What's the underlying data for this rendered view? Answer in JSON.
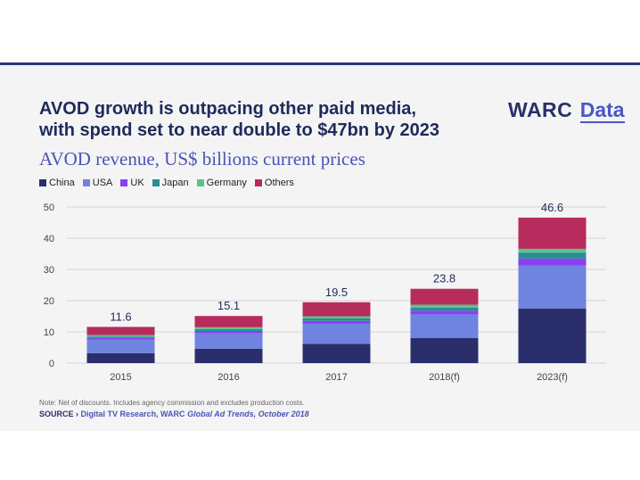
{
  "title_line1": "AVOD growth is outpacing other paid media,",
  "title_line2": "with spend set to near double to $47bn by 2023",
  "brand": {
    "main": "WARC",
    "sub": "Data"
  },
  "colors": {
    "rule": "#2e3383",
    "China": "#2a2f6b",
    "USA": "#6f83e0",
    "UK": "#8a3ff0",
    "Japan": "#2a8d95",
    "Germany": "#59c48a",
    "Others": "#b72c5d"
  },
  "footer": {
    "note": "Note: Net of discounts. Includes agency commission and excludes production costs.",
    "source_label": "SOURCE ›",
    "source_text": "Digital TV Research, WARC",
    "source_pub": "Global Ad Trends, October 2018"
  },
  "chart_data": {
    "type": "bar",
    "stacked": true,
    "title": "AVOD revenue, US$ billions current prices",
    "xlabel": "",
    "ylabel": "",
    "ylim": [
      0,
      50
    ],
    "yticks": [
      0,
      10,
      20,
      30,
      40,
      50
    ],
    "grid": true,
    "legend_position": "top-left",
    "categories": [
      "2015",
      "2016",
      "2017",
      "2018(f)",
      "2023(f)"
    ],
    "totals": [
      "11.6",
      "15.1",
      "19.5",
      "23.8",
      "46.6"
    ],
    "series": [
      {
        "name": "China",
        "values": [
          3.2,
          4.6,
          6.2,
          8.0,
          17.5
        ]
      },
      {
        "name": "USA",
        "values": [
          4.3,
          5.0,
          6.4,
          7.6,
          13.7
        ]
      },
      {
        "name": "UK",
        "values": [
          0.6,
          0.7,
          0.9,
          1.2,
          2.3
        ]
      },
      {
        "name": "Japan",
        "values": [
          0.4,
          0.6,
          0.8,
          1.0,
          1.9
        ]
      },
      {
        "name": "Germany",
        "values": [
          0.5,
          0.6,
          0.7,
          0.9,
          1.2
        ]
      },
      {
        "name": "Others",
        "values": [
          2.6,
          3.6,
          4.5,
          5.1,
          10.0
        ]
      }
    ]
  }
}
